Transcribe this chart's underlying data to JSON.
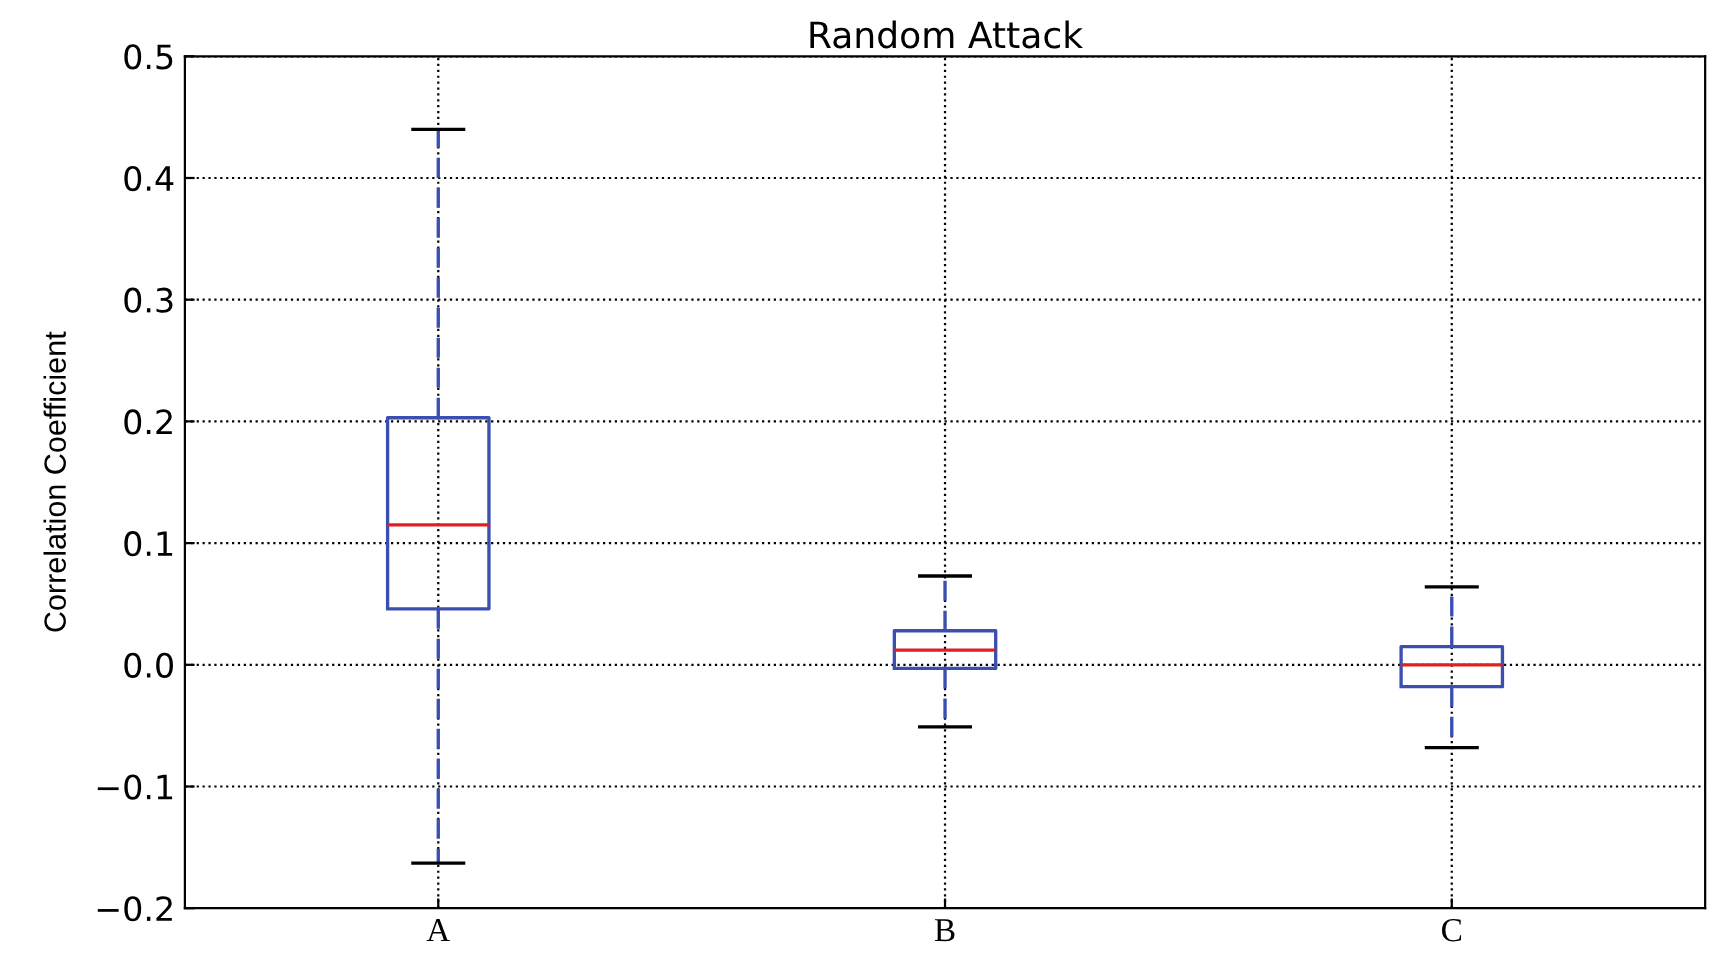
{
  "chart_data": {
    "type": "box",
    "title": "Random Attack",
    "ylabel": "Correlation Coefficient",
    "categories": [
      "A",
      "B",
      "C"
    ],
    "boxes": [
      {
        "low": -0.163,
        "q1": 0.046,
        "median": 0.115,
        "q3": 0.203,
        "high": 0.44
      },
      {
        "low": -0.051,
        "q1": -0.003,
        "median": 0.012,
        "q3": 0.028,
        "high": 0.073
      },
      {
        "low": -0.068,
        "q1": -0.018,
        "median": 0.0,
        "q3": 0.015,
        "high": 0.064
      }
    ],
    "color": "#3a4fb0",
    "ylim": [
      -0.2,
      0.5
    ],
    "yticks": [
      {
        "value": -0.2,
        "label": "−0.2"
      },
      {
        "value": -0.1,
        "label": "−0.1"
      },
      {
        "value": 0,
        "label": "0.0"
      },
      0.1,
      0.2,
      0.3,
      0.4,
      0.5
    ],
    "grid": true,
    "line_style": "dotted"
  }
}
